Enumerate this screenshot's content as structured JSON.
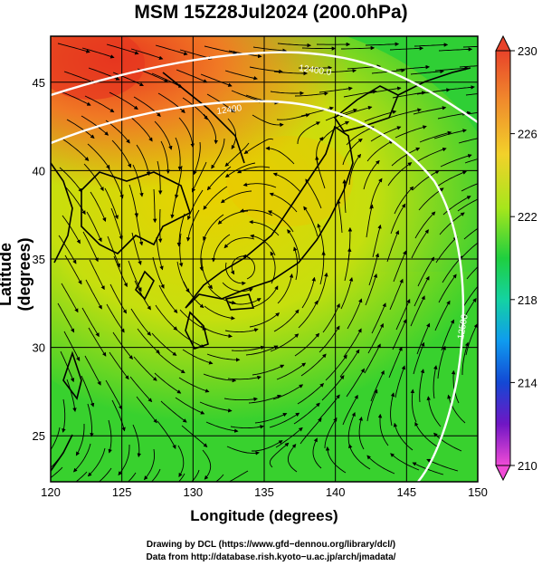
{
  "title": "MSM 15Z28Jul2024 (200.0hPa)",
  "axes": {
    "xlabel": "Longitude (degrees)",
    "ylabel": "Latitude  (degrees)",
    "x_ticks": [
      "120",
      "125",
      "130",
      "135",
      "140",
      "145",
      "150"
    ],
    "y_ticks": [
      "25",
      "30",
      "35",
      "40",
      "45"
    ]
  },
  "map": {
    "lon_range": [
      120,
      150
    ],
    "lat_range": [
      22.4,
      47.6
    ],
    "gridlines": true,
    "contour_labels": [
      "12400.0",
      "12400",
      "12500"
    ],
    "field_colors": {
      "low": "#1fcf3f",
      "mid": "#e8d400",
      "high": "#e6321e"
    }
  },
  "colorbar": {
    "ticks": [
      "230",
      "226",
      "222",
      "218",
      "214",
      "210"
    ],
    "range": [
      210,
      230
    ],
    "colors_top_to_bottom": [
      "#e8432a",
      "#f08a2c",
      "#f2d12a",
      "#a6e61c",
      "#1fcf3f",
      "#14d2a2",
      "#0f9bef",
      "#1348d4",
      "#3714c8",
      "#b01ac4",
      "#f04bd6"
    ]
  },
  "credits": {
    "line1": "Drawing by DCL (https://www.gfd−dennou.org/library/dcl/)",
    "line2": "Data from http://database.rish.kyoto−u.ac.jp/arch/jmadata/"
  }
}
